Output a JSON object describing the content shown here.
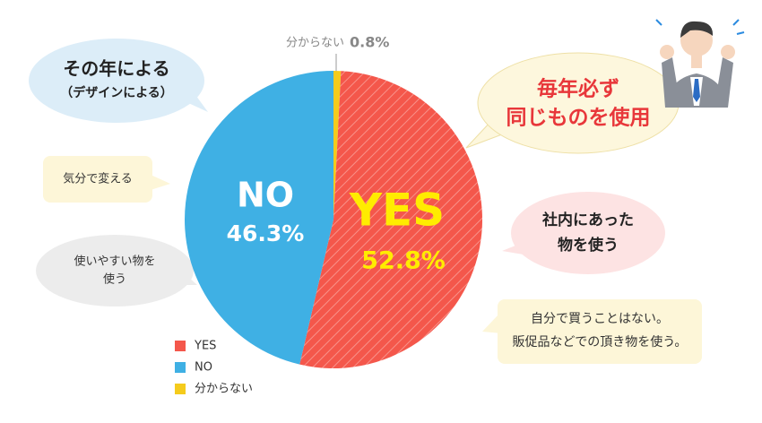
{
  "chart_data": {
    "type": "pie",
    "categories": [
      "分からない",
      "YES",
      "NO"
    ],
    "values": [
      0.8,
      52.8,
      46.3
    ],
    "value_labels": [
      "0.8%",
      "52.8%",
      "46.3%"
    ],
    "colors": [
      "#f5cb1c",
      "#f4574b",
      "#3fb0e4"
    ],
    "start_angle": -90,
    "direction": "clockwise",
    "legend": {
      "position": "bottom-left",
      "order": [
        1,
        2,
        0
      ]
    },
    "annotations": [
      {
        "lines": [
          "その年による",
          "（デザインによる）"
        ]
      },
      {
        "lines": [
          "気分で変える"
        ]
      },
      {
        "lines": [
          "使いやすい物を",
          "使う"
        ]
      },
      {
        "lines": [
          "毎年必ず",
          "同じものを使用"
        ]
      },
      {
        "lines": [
          "社内にあった",
          "物を使う"
        ]
      },
      {
        "lines": [
          "自分で買うことはない。",
          "販促品などでの頂き物を使う。"
        ]
      }
    ]
  }
}
